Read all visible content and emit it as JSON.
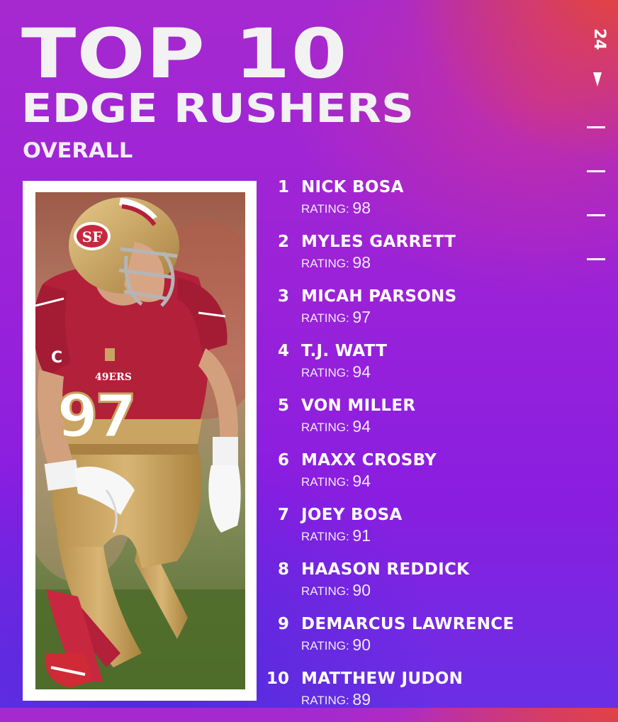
{
  "header": {
    "title_line1": "TOP 10",
    "title_line2": "EDGE RUSHERS",
    "subtitle": "OVERALL"
  },
  "side": {
    "year": "24"
  },
  "photo": {
    "jersey_number": "97",
    "team_wordmark": "49ERS",
    "captain_patch": "C",
    "helmet_logo": "SF"
  },
  "rating_label": "RATING:",
  "players": [
    {
      "rank": "1",
      "name": "NICK BOSA",
      "rating": "98"
    },
    {
      "rank": "2",
      "name": "MYLES GARRETT",
      "rating": "98"
    },
    {
      "rank": "3",
      "name": "MICAH PARSONS",
      "rating": "97"
    },
    {
      "rank": "4",
      "name": "T.J. WATT",
      "rating": "94"
    },
    {
      "rank": "5",
      "name": "VON MILLER",
      "rating": "94"
    },
    {
      "rank": "6",
      "name": "MAXX CROSBY",
      "rating": "94"
    },
    {
      "rank": "7",
      "name": "JOEY BOSA",
      "rating": "91"
    },
    {
      "rank": "8",
      "name": "HAASON REDDICK",
      "rating": "90"
    },
    {
      "rank": "9",
      "name": "DEMARCUS LAWRENCE",
      "rating": "90"
    },
    {
      "rank": "10",
      "name": "MATTHEW JUDON",
      "rating": "89"
    }
  ],
  "colors": {
    "background_top": "#a629cf",
    "background_bottom": "#6a2fe4",
    "accent_orange": "#ec4828",
    "jersey_red": "#b3203a",
    "pants_gold": "#c9a463"
  }
}
